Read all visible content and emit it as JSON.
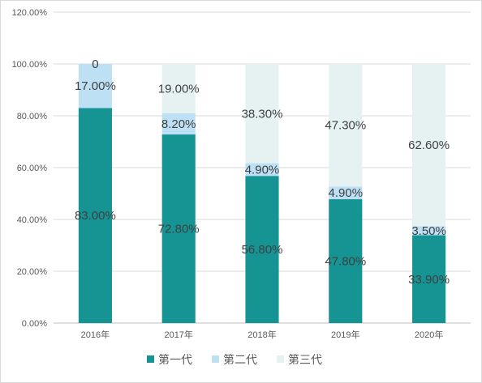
{
  "chart_data": {
    "type": "bar",
    "stacked": true,
    "percent": true,
    "categories": [
      "2016年",
      "2017年",
      "2018年",
      "2019年",
      "2020年"
    ],
    "series": [
      {
        "name": "第一代",
        "values": [
          83.0,
          72.8,
          56.8,
          47.8,
          33.9
        ],
        "labels": [
          "83.00%",
          "72.80%",
          "56.80%",
          "47.80%",
          "33.90%"
        ],
        "color": "#169393"
      },
      {
        "name": "第二代",
        "values": [
          17.0,
          8.2,
          4.9,
          4.9,
          3.5
        ],
        "labels": [
          "17.00%",
          "8.20%",
          "4.90%",
          "4.90%",
          "3.50%"
        ],
        "color": "#bde0f5"
      },
      {
        "name": "第三代",
        "values": [
          0,
          19.0,
          38.3,
          47.3,
          62.6
        ],
        "labels": [
          "0",
          "19.00%",
          "38.30%",
          "47.30%",
          "62.60%"
        ],
        "color": "#e6f2f2"
      }
    ],
    "yticks": [
      "0.00%",
      "20.00%",
      "40.00%",
      "60.00%",
      "80.00%",
      "100.00%",
      "120.00%"
    ],
    "ylim": [
      0,
      120
    ],
    "grid": true,
    "legend": "bottom"
  }
}
